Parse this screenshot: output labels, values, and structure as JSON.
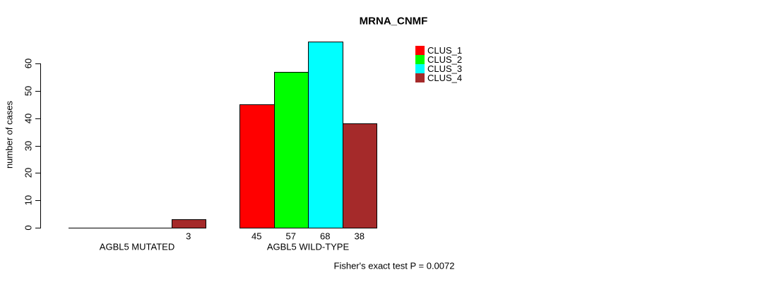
{
  "chart_data": {
    "type": "bar",
    "title": "MRNA_CNMF",
    "ylabel": "number of cases",
    "xlabel": "",
    "ylim": [
      0,
      60
    ],
    "yticks": [
      0,
      10,
      20,
      30,
      40,
      50,
      60
    ],
    "categories": [
      "AGBL5 MUTATED",
      "AGBL5 WILD-TYPE"
    ],
    "series": [
      {
        "name": "CLUS_1",
        "color": "#FF0000",
        "values": [
          0,
          45
        ]
      },
      {
        "name": "CLUS_2",
        "color": "#00FF00",
        "values": [
          0,
          57
        ]
      },
      {
        "name": "CLUS_3",
        "color": "#00FFFF",
        "values": [
          0,
          68
        ]
      },
      {
        "name": "CLUS_4",
        "color": "#A52A2A",
        "values": [
          3,
          38
        ]
      }
    ],
    "bar_value_labels_shown_when_positive": true,
    "legend_position": "top-right",
    "grid": false,
    "annotation": "Fisher's exact test P = 0.0072"
  }
}
